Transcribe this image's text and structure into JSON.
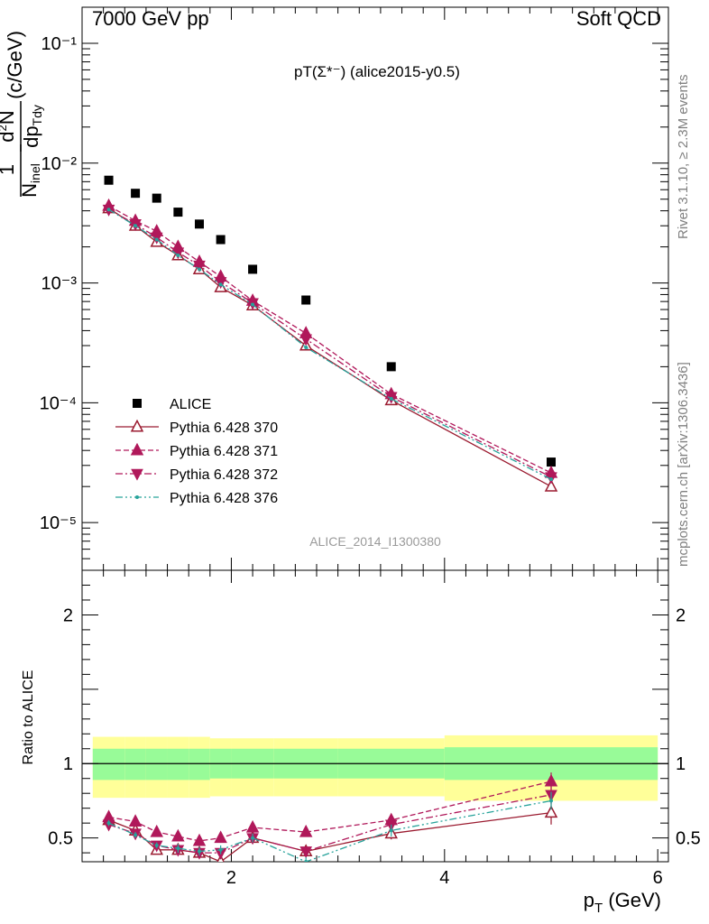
{
  "header": {
    "left": "7000 GeV pp",
    "right": "Soft QCD",
    "plot_title": "pT(Σ*⁻) (alice2015-y0.5)"
  },
  "side_labels": {
    "rivet": "Rivet 3.1.10, ≥ 2.3M events",
    "site": "mcplots.cern.ch [arXiv:1306.3436]"
  },
  "watermark": "ALICE_2014_I1300380",
  "colors": {
    "data": "#000000",
    "py370": "#9b1b30",
    "py371": "#b0185a",
    "py372": "#b0185a",
    "py376": "#27a39b",
    "band_inner": "#98fb98",
    "band_outer": "#ffff99"
  },
  "chart_data": [
    {
      "type": "scatter",
      "name": "main-panel",
      "yscale": "log",
      "ylabel": "1/N_inel d²N/dp_T dy (c/GeV)",
      "ylim": [
        4e-06,
        0.2
      ],
      "y_ticks": [
        "10⁻⁵",
        "10⁻⁴",
        "10⁻³",
        "10⁻²",
        "10⁻¹"
      ],
      "x": [
        0.85,
        1.1,
        1.3,
        1.5,
        1.7,
        1.9,
        2.2,
        2.7,
        3.5,
        5.0
      ],
      "series": [
        {
          "name": "ALICE",
          "key": "data",
          "marker": "square",
          "values": [
            0.0072,
            0.0056,
            0.0051,
            0.0039,
            0.0031,
            0.0023,
            0.0013,
            0.00072,
            0.0002,
            3.2e-05
          ]
        },
        {
          "name": "Pythia 6.428 370",
          "key": "py370",
          "marker": "triangle-open",
          "dash": "solid",
          "values": [
            0.0042,
            0.003,
            0.0022,
            0.0017,
            0.0013,
            0.00092,
            0.00065,
            0.0003,
            0.000105,
            2e-05
          ]
        },
        {
          "name": "Pythia 6.428 371",
          "key": "py371",
          "marker": "triangle",
          "dash": "6,3",
          "values": [
            0.0044,
            0.0033,
            0.0027,
            0.002,
            0.0015,
            0.00113,
            0.00071,
            0.00038,
            0.000118,
            2.6e-05
          ]
        },
        {
          "name": "Pythia 6.428 372",
          "key": "py372",
          "marker": "triangle-down",
          "dash": "8,3,2,3",
          "values": [
            0.0041,
            0.0031,
            0.0024,
            0.0018,
            0.0014,
            0.00102,
            0.00068,
            0.00034,
            0.000112,
            2.4e-05
          ]
        },
        {
          "name": "Pythia 6.428 376",
          "key": "py376",
          "marker": "dot",
          "dash": "8,3,2,3,2,3",
          "values": [
            0.0041,
            0.003,
            0.0023,
            0.0017,
            0.0013,
            0.00097,
            0.00066,
            0.00029,
            0.000108,
            2.3e-05
          ]
        }
      ]
    },
    {
      "type": "scatter",
      "name": "ratio-panel",
      "ylabel": "Ratio to ALICE",
      "xlabel": "p_T (GeV)",
      "xlim": [
        0.6,
        6.1
      ],
      "ylim": [
        0.34,
        2.3
      ],
      "x_ticks": [
        "2",
        "4",
        "6"
      ],
      "y_ticks": [
        "0.5",
        "1",
        "2"
      ],
      "x": [
        0.85,
        1.1,
        1.3,
        1.5,
        1.7,
        1.9,
        2.2,
        2.7,
        3.5,
        5.0
      ],
      "band_edges": [
        0.7,
        1.0,
        1.2,
        1.4,
        1.6,
        1.8,
        2.0,
        2.4,
        3.0,
        4.0,
        6.0
      ],
      "band_inner": [
        [
          0.89,
          1.1
        ],
        [
          0.89,
          1.1
        ],
        [
          0.89,
          1.1
        ],
        [
          0.89,
          1.1
        ],
        [
          0.89,
          1.1
        ],
        [
          0.9,
          1.1
        ],
        [
          0.9,
          1.1
        ],
        [
          0.9,
          1.1
        ],
        [
          0.9,
          1.1
        ],
        [
          0.89,
          1.11
        ]
      ],
      "band_outer": [
        [
          0.77,
          1.18
        ],
        [
          0.77,
          1.18
        ],
        [
          0.77,
          1.18
        ],
        [
          0.77,
          1.18
        ],
        [
          0.77,
          1.18
        ],
        [
          0.78,
          1.17
        ],
        [
          0.78,
          1.17
        ],
        [
          0.78,
          1.17
        ],
        [
          0.78,
          1.17
        ],
        [
          0.75,
          1.19
        ]
      ],
      "series": [
        {
          "name": "Pythia 6.428 370",
          "key": "py370",
          "marker": "triangle-open",
          "dash": "solid",
          "values": [
            0.62,
            0.55,
            0.42,
            0.42,
            0.4,
            0.34,
            0.5,
            0.41,
            0.53,
            0.67
          ],
          "errors": [
            0.02,
            0.02,
            0.02,
            0.03,
            0.03,
            0.03,
            0.03,
            0.03,
            0.04,
            0.08
          ]
        },
        {
          "name": "Pythia 6.428 371",
          "key": "py371",
          "marker": "triangle",
          "dash": "6,3",
          "values": [
            0.64,
            0.61,
            0.54,
            0.51,
            0.48,
            0.5,
            0.57,
            0.54,
            0.62,
            0.88
          ],
          "errors": [
            0.02,
            0.02,
            0.02,
            0.02,
            0.03,
            0.03,
            0.03,
            0.03,
            0.04,
            0.06
          ]
        },
        {
          "name": "Pythia 6.428 372",
          "key": "py372",
          "marker": "triangle-down",
          "dash": "8,3,2,3",
          "values": [
            0.59,
            0.53,
            0.45,
            0.42,
            0.4,
            0.4,
            0.5,
            0.41,
            0.59,
            0.79
          ],
          "errors": [
            0.02,
            0.02,
            0.02,
            0.03,
            0.03,
            0.03,
            0.03,
            0.03,
            0.04,
            0.06
          ]
        },
        {
          "name": "Pythia 6.428 376",
          "key": "py376",
          "marker": "dot",
          "dash": "8,3,2,3,2,3",
          "values": [
            0.6,
            0.52,
            0.45,
            0.43,
            0.41,
            0.42,
            0.5,
            0.34,
            0.55,
            0.75
          ],
          "errors": [
            0.02,
            0.02,
            0.02,
            0.03,
            0.03,
            0.03,
            0.03,
            0.03,
            0.04,
            0.06
          ]
        }
      ]
    }
  ]
}
